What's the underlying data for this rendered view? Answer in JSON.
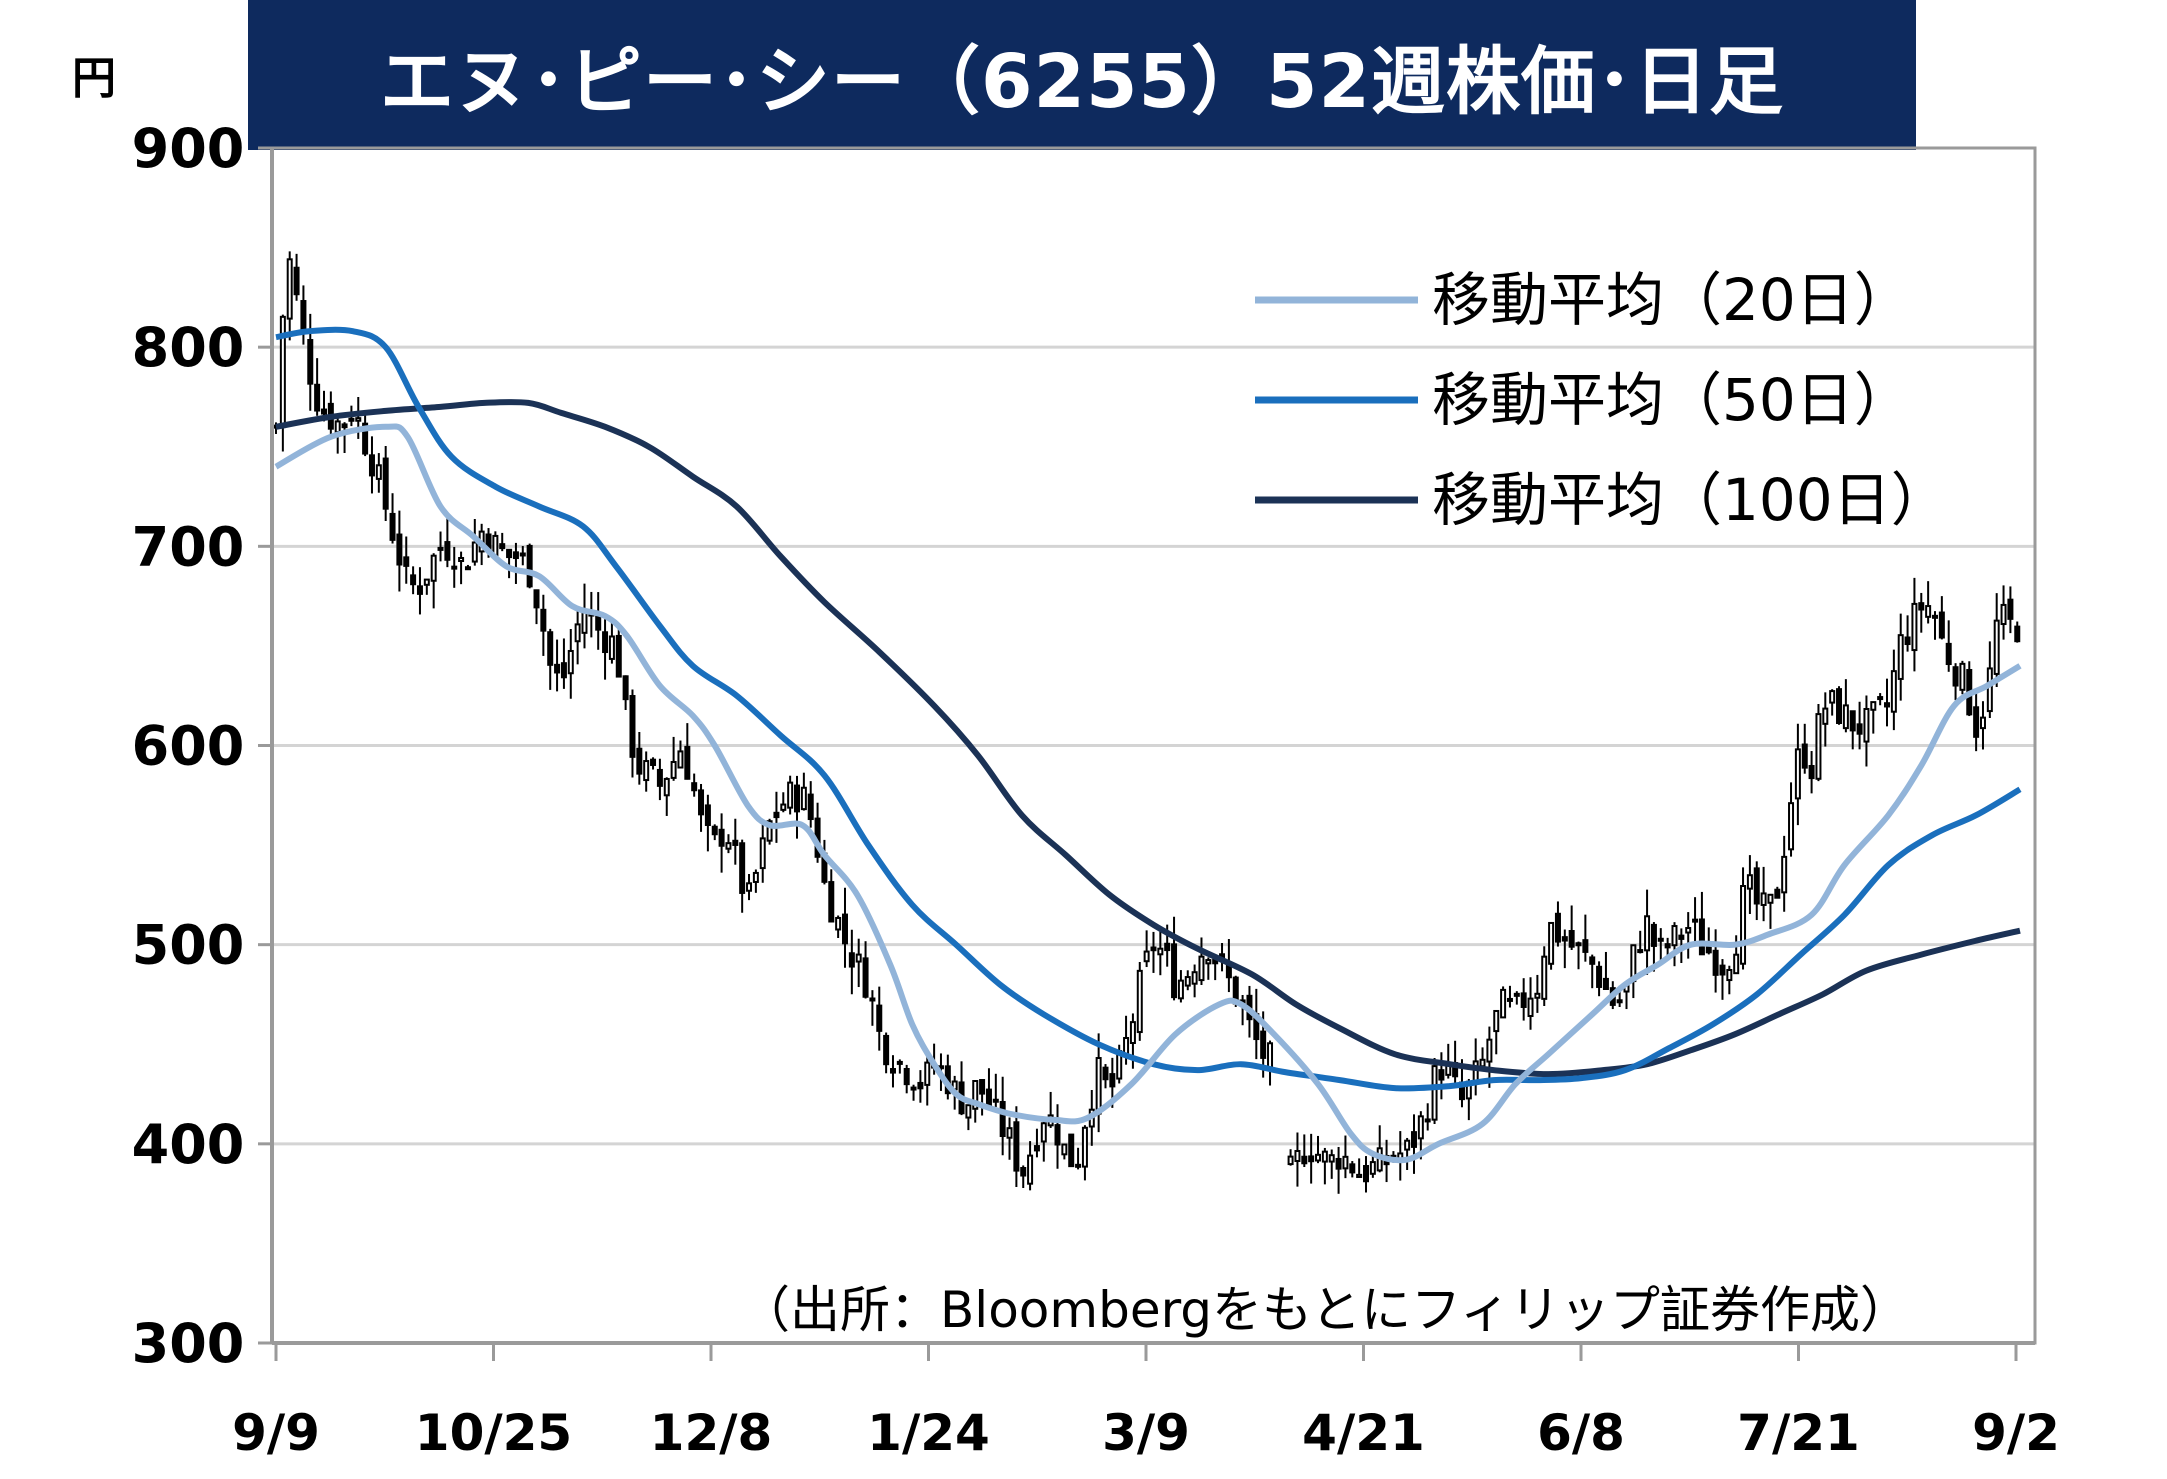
{
  "title": "エヌ･ピー･シー（6255）52週株価･日足",
  "unit_label": "円",
  "source_note": "（出所：Bloombergをもとにフィリップ証券作成）",
  "colors": {
    "title_bg": "#0e2a5e",
    "ma20": "#92b4d9",
    "ma50": "#1a6fbd",
    "ma100": "#1b3256",
    "candle": "#000000",
    "grid": "#d4d4d4",
    "axis": "#9a9a9a"
  },
  "chart_data": {
    "type": "candlestick",
    "title": "エヌ･ピー･シー（6255）52週株価･日足",
    "ylabel": "円",
    "ylim": [
      300,
      900
    ],
    "yticks": [
      300,
      400,
      500,
      600,
      700,
      800,
      900
    ],
    "x_tick_labels": [
      "9/9",
      "10/25",
      "12/8",
      "1/24",
      "3/9",
      "4/21",
      "6/8",
      "7/21",
      "9/2"
    ],
    "grid": "horizontal",
    "legend_position": "top-right",
    "legend": [
      {
        "key": "ma20",
        "label": "移動平均（20日）"
      },
      {
        "key": "ma50",
        "label": "移動平均（50日）"
      },
      {
        "key": "ma100",
        "label": "移動平均（100日）"
      }
    ],
    "close_path": [
      [
        0,
        760
      ],
      [
        2,
        850
      ],
      [
        4,
        820
      ],
      [
        6,
        790
      ],
      [
        8,
        770
      ],
      [
        10,
        765
      ],
      [
        12,
        760
      ],
      [
        14,
        770
      ],
      [
        16,
        755
      ],
      [
        18,
        740
      ],
      [
        20,
        720
      ],
      [
        22,
        700
      ],
      [
        24,
        680
      ],
      [
        26,
        680
      ],
      [
        28,
        690
      ],
      [
        30,
        700
      ],
      [
        32,
        700
      ],
      [
        34,
        690
      ],
      [
        36,
        700
      ],
      [
        38,
        710
      ],
      [
        40,
        700
      ],
      [
        42,
        695
      ],
      [
        44,
        695
      ],
      [
        46,
        690
      ],
      [
        48,
        670
      ],
      [
        50,
        640
      ],
      [
        52,
        630
      ],
      [
        54,
        650
      ],
      [
        56,
        670
      ],
      [
        58,
        660
      ],
      [
        60,
        655
      ],
      [
        62,
        650
      ],
      [
        64,
        610
      ],
      [
        66,
        590
      ],
      [
        68,
        585
      ],
      [
        70,
        580
      ],
      [
        72,
        590
      ],
      [
        74,
        600
      ],
      [
        76,
        580
      ],
      [
        78,
        555
      ],
      [
        80,
        550
      ],
      [
        82,
        560
      ],
      [
        84,
        540
      ],
      [
        86,
        520
      ],
      [
        88,
        540
      ],
      [
        90,
        560
      ],
      [
        92,
        570
      ],
      [
        94,
        575
      ],
      [
        96,
        575
      ],
      [
        98,
        560
      ],
      [
        100,
        530
      ],
      [
        102,
        515
      ],
      [
        104,
        500
      ],
      [
        106,
        490
      ],
      [
        108,
        480
      ],
      [
        110,
        455
      ],
      [
        112,
        445
      ],
      [
        114,
        440
      ],
      [
        116,
        435
      ],
      [
        118,
        430
      ],
      [
        120,
        440
      ],
      [
        122,
        435
      ],
      [
        124,
        425
      ],
      [
        126,
        420
      ],
      [
        128,
        430
      ],
      [
        130,
        420
      ],
      [
        132,
        410
      ],
      [
        134,
        400
      ],
      [
        136,
        385
      ],
      [
        138,
        400
      ],
      [
        140,
        415
      ],
      [
        142,
        410
      ],
      [
        144,
        395
      ],
      [
        146,
        390
      ],
      [
        148,
        420
      ],
      [
        150,
        435
      ],
      [
        152,
        425
      ],
      [
        154,
        440
      ],
      [
        156,
        460
      ],
      [
        158,
        485
      ],
      [
        160,
        500
      ],
      [
        162,
        495
      ],
      [
        164,
        480
      ],
      [
        166,
        485
      ],
      [
        168,
        495
      ],
      [
        170,
        500
      ],
      [
        172,
        490
      ],
      [
        174,
        480
      ],
      [
        176,
        470
      ],
      [
        178,
        455
      ],
      [
        180,
        445
      ],
      [
        182,
        440
      ],
      [
        184,
        380
      ],
      [
        186,
        390
      ],
      [
        188,
        400
      ],
      [
        190,
        395
      ],
      [
        192,
        390
      ],
      [
        194,
        395
      ],
      [
        196,
        390
      ],
      [
        198,
        385
      ],
      [
        200,
        388
      ],
      [
        202,
        390
      ],
      [
        204,
        395
      ],
      [
        206,
        395
      ],
      [
        208,
        405
      ],
      [
        210,
        420
      ],
      [
        212,
        440
      ],
      [
        214,
        435
      ],
      [
        216,
        420
      ],
      [
        218,
        430
      ],
      [
        220,
        440
      ],
      [
        222,
        460
      ],
      [
        224,
        470
      ],
      [
        226,
        465
      ],
      [
        228,
        475
      ],
      [
        230,
        480
      ],
      [
        232,
        510
      ],
      [
        234,
        505
      ],
      [
        236,
        500
      ],
      [
        238,
        495
      ],
      [
        240,
        490
      ],
      [
        242,
        480
      ],
      [
        244,
        470
      ],
      [
        246,
        475
      ],
      [
        248,
        500
      ],
      [
        250,
        510
      ],
      [
        252,
        495
      ],
      [
        254,
        500
      ],
      [
        256,
        505
      ],
      [
        258,
        510
      ],
      [
        260,
        500
      ],
      [
        262,
        495
      ],
      [
        264,
        490
      ],
      [
        266,
        500
      ],
      [
        268,
        530
      ],
      [
        270,
        520
      ],
      [
        272,
        515
      ],
      [
        274,
        530
      ],
      [
        276,
        570
      ],
      [
        278,
        600
      ],
      [
        280,
        590
      ],
      [
        282,
        620
      ],
      [
        284,
        620
      ],
      [
        286,
        615
      ],
      [
        288,
        610
      ],
      [
        290,
        610
      ],
      [
        292,
        615
      ],
      [
        294,
        620
      ],
      [
        296,
        650
      ],
      [
        298,
        660
      ],
      [
        300,
        670
      ],
      [
        302,
        670
      ],
      [
        304,
        650
      ],
      [
        306,
        640
      ],
      [
        308,
        630
      ],
      [
        310,
        610
      ],
      [
        312,
        625
      ],
      [
        314,
        665
      ],
      [
        316,
        660
      ],
      [
        318,
        660
      ]
    ],
    "ma20": [
      [
        0,
        740
      ],
      [
        10,
        755
      ],
      [
        20,
        760
      ],
      [
        24,
        755
      ],
      [
        30,
        720
      ],
      [
        36,
        705
      ],
      [
        42,
        690
      ],
      [
        48,
        685
      ],
      [
        54,
        670
      ],
      [
        60,
        665
      ],
      [
        64,
        655
      ],
      [
        70,
        630
      ],
      [
        76,
        615
      ],
      [
        80,
        600
      ],
      [
        86,
        570
      ],
      [
        90,
        560
      ],
      [
        96,
        560
      ],
      [
        100,
        545
      ],
      [
        106,
        525
      ],
      [
        112,
        490
      ],
      [
        116,
        460
      ],
      [
        120,
        440
      ],
      [
        124,
        425
      ],
      [
        128,
        420
      ],
      [
        134,
        415
      ],
      [
        142,
        412
      ],
      [
        148,
        413
      ],
      [
        156,
        430
      ],
      [
        164,
        455
      ],
      [
        172,
        470
      ],
      [
        176,
        470
      ],
      [
        182,
        455
      ],
      [
        190,
        430
      ],
      [
        196,
        405
      ],
      [
        200,
        395
      ],
      [
        206,
        392
      ],
      [
        212,
        400
      ],
      [
        220,
        410
      ],
      [
        226,
        430
      ],
      [
        232,
        445
      ],
      [
        240,
        465
      ],
      [
        246,
        480
      ],
      [
        252,
        490
      ],
      [
        258,
        500
      ],
      [
        266,
        500
      ],
      [
        272,
        505
      ],
      [
        280,
        515
      ],
      [
        286,
        540
      ],
      [
        294,
        565
      ],
      [
        300,
        590
      ],
      [
        306,
        620
      ],
      [
        312,
        630
      ],
      [
        318,
        640
      ]
    ],
    "ma50": [
      [
        0,
        805
      ],
      [
        6,
        808
      ],
      [
        14,
        808
      ],
      [
        20,
        800
      ],
      [
        26,
        770
      ],
      [
        32,
        745
      ],
      [
        40,
        730
      ],
      [
        48,
        720
      ],
      [
        56,
        710
      ],
      [
        62,
        690
      ],
      [
        70,
        660
      ],
      [
        76,
        640
      ],
      [
        84,
        625
      ],
      [
        92,
        605
      ],
      [
        100,
        585
      ],
      [
        108,
        550
      ],
      [
        116,
        520
      ],
      [
        124,
        500
      ],
      [
        132,
        480
      ],
      [
        140,
        465
      ],
      [
        150,
        450
      ],
      [
        160,
        440
      ],
      [
        168,
        437
      ],
      [
        176,
        440
      ],
      [
        184,
        436
      ],
      [
        194,
        432
      ],
      [
        204,
        428
      ],
      [
        214,
        429
      ],
      [
        222,
        432
      ],
      [
        230,
        432
      ],
      [
        238,
        433
      ],
      [
        246,
        437
      ],
      [
        254,
        448
      ],
      [
        262,
        460
      ],
      [
        270,
        475
      ],
      [
        278,
        495
      ],
      [
        286,
        515
      ],
      [
        294,
        540
      ],
      [
        302,
        555
      ],
      [
        310,
        565
      ],
      [
        318,
        578
      ]
    ],
    "ma100": [
      [
        0,
        760
      ],
      [
        10,
        765
      ],
      [
        20,
        768
      ],
      [
        30,
        770
      ],
      [
        38,
        772
      ],
      [
        46,
        772
      ],
      [
        52,
        767
      ],
      [
        60,
        760
      ],
      [
        68,
        750
      ],
      [
        76,
        735
      ],
      [
        84,
        720
      ],
      [
        92,
        695
      ],
      [
        100,
        672
      ],
      [
        110,
        647
      ],
      [
        120,
        620
      ],
      [
        128,
        595
      ],
      [
        136,
        565
      ],
      [
        144,
        545
      ],
      [
        152,
        525
      ],
      [
        160,
        510
      ],
      [
        168,
        498
      ],
      [
        178,
        485
      ],
      [
        186,
        470
      ],
      [
        194,
        458
      ],
      [
        204,
        445
      ],
      [
        214,
        440
      ],
      [
        222,
        437
      ],
      [
        232,
        435
      ],
      [
        242,
        437
      ],
      [
        250,
        440
      ],
      [
        258,
        447
      ],
      [
        266,
        455
      ],
      [
        274,
        465
      ],
      [
        282,
        475
      ],
      [
        290,
        487
      ],
      [
        300,
        495
      ],
      [
        310,
        502
      ],
      [
        318,
        507
      ]
    ],
    "x_domain": [
      0,
      318
    ],
    "gaps": [
      [
        182,
        184
      ]
    ]
  }
}
